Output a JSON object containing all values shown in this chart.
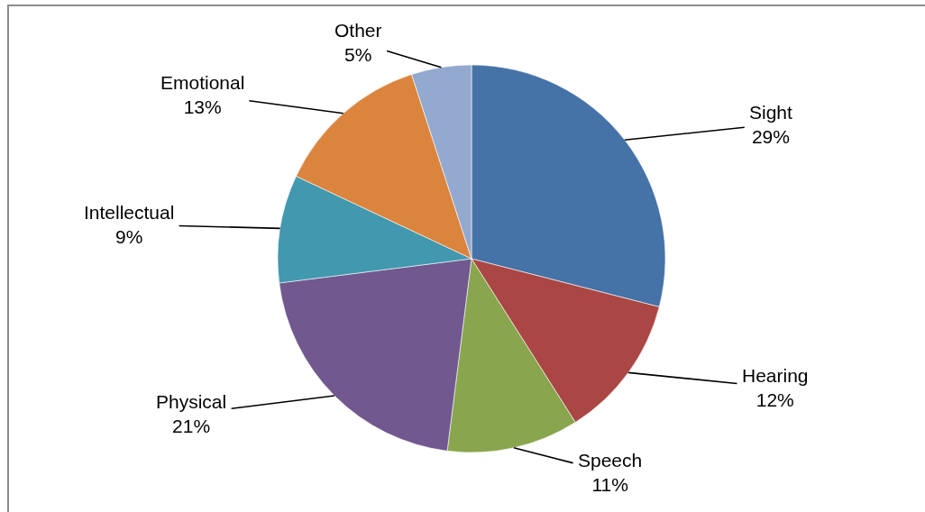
{
  "chart_data": {
    "type": "pie",
    "categories": [
      "Sight",
      "Hearing",
      "Speech",
      "Physical",
      "Intellectual",
      "Emotional",
      "Other"
    ],
    "values": [
      29,
      12,
      11,
      21,
      9,
      13,
      5
    ],
    "value_labels": [
      "29%",
      "12%",
      "11%",
      "21%",
      "9%",
      "13%",
      "5%"
    ],
    "colors": [
      "#4572a7",
      "#aa4643",
      "#89a54e",
      "#71588f",
      "#4198af",
      "#db843d",
      "#93a9cf"
    ]
  }
}
